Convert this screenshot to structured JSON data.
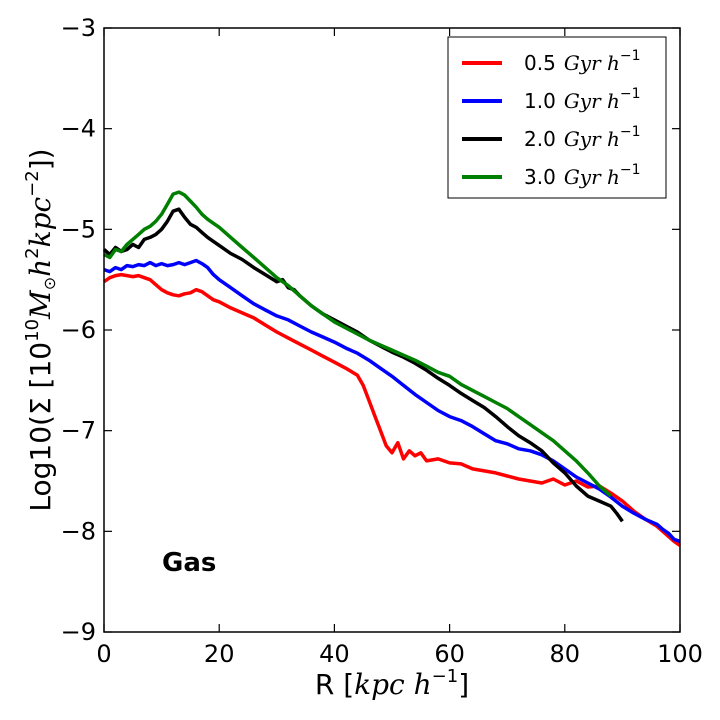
{
  "chart_data": {
    "type": "line",
    "title": "",
    "xlabel": "R [kpc h^-1]",
    "xlabel_parts": {
      "lead": "R [",
      "math": "kpc h",
      "sup": "−1",
      "tail": "]"
    },
    "ylabel": "Log10(Σ [10^10 M⊙ h^2 kpc^-2])",
    "ylabel_parts": {
      "lead": "Log10(Σ [10",
      "sup1": "10",
      "m": "M",
      "sun": "⊙",
      "h": "h",
      "sup2": "2",
      "kpc": "kpc",
      "sup3": "−2",
      "tail": "])"
    },
    "xlim": [
      0,
      100
    ],
    "ylim": [
      -9,
      -3
    ],
    "xticks": [
      0,
      20,
      40,
      60,
      80,
      100
    ],
    "xtick_labels": [
      "0",
      "20",
      "40",
      "60",
      "80",
      "100"
    ],
    "yticks": [
      -9,
      -8,
      -7,
      -6,
      -5,
      -4,
      -3
    ],
    "ytick_labels": [
      "−9",
      "−8",
      "−7",
      "−6",
      "−5",
      "−4",
      "−3"
    ],
    "grid": false,
    "legend_position": "top-right",
    "annotation": "Gas",
    "series": [
      {
        "name": "0.5 Gyr h^-1",
        "label_value": "0.5",
        "label_unit": "Gyr h",
        "label_sup": "−1",
        "color": "#ff0000",
        "x": [
          0,
          1,
          2,
          3,
          4,
          5,
          6,
          7,
          8,
          9,
          10,
          11,
          12,
          13,
          14,
          15,
          16,
          17,
          18,
          19,
          20,
          22,
          24,
          26,
          28,
          30,
          32,
          34,
          36,
          38,
          40,
          42,
          44,
          45,
          46,
          47,
          48,
          49,
          50,
          51,
          52,
          53,
          54,
          55,
          56,
          58,
          60,
          62,
          64,
          66,
          68,
          70,
          72,
          74,
          76,
          78,
          80,
          82,
          84,
          86,
          88,
          90,
          92,
          94,
          96,
          97,
          98,
          99,
          100
        ],
        "y": [
          -5.52,
          -5.48,
          -5.46,
          -5.45,
          -5.46,
          -5.47,
          -5.46,
          -5.48,
          -5.5,
          -5.55,
          -5.6,
          -5.63,
          -5.65,
          -5.66,
          -5.64,
          -5.63,
          -5.6,
          -5.62,
          -5.66,
          -5.7,
          -5.72,
          -5.78,
          -5.83,
          -5.88,
          -5.95,
          -6.02,
          -6.08,
          -6.14,
          -6.2,
          -6.26,
          -6.32,
          -6.38,
          -6.45,
          -6.55,
          -6.7,
          -6.85,
          -7.0,
          -7.15,
          -7.22,
          -7.12,
          -7.28,
          -7.2,
          -7.25,
          -7.22,
          -7.3,
          -7.28,
          -7.32,
          -7.33,
          -7.38,
          -7.4,
          -7.42,
          -7.45,
          -7.48,
          -7.5,
          -7.52,
          -7.48,
          -7.54,
          -7.5,
          -7.56,
          -7.55,
          -7.62,
          -7.7,
          -7.8,
          -7.88,
          -7.95,
          -8.0,
          -8.05,
          -8.1,
          -8.14
        ]
      },
      {
        "name": "1.0 Gyr h^-1",
        "label_value": "1.0",
        "label_unit": "Gyr h",
        "label_sup": "−1",
        "color": "#0000ff",
        "x": [
          0,
          1,
          2,
          3,
          4,
          5,
          6,
          7,
          8,
          9,
          10,
          11,
          12,
          13,
          14,
          15,
          16,
          17,
          18,
          19,
          20,
          22,
          24,
          26,
          28,
          30,
          32,
          34,
          36,
          38,
          40,
          42,
          44,
          46,
          48,
          50,
          52,
          54,
          56,
          58,
          60,
          62,
          64,
          66,
          68,
          70,
          72,
          74,
          76,
          78,
          80,
          82,
          84,
          86,
          88,
          90,
          92,
          94,
          96,
          97,
          98,
          99,
          100
        ],
        "y": [
          -5.4,
          -5.42,
          -5.38,
          -5.4,
          -5.36,
          -5.37,
          -5.35,
          -5.36,
          -5.33,
          -5.36,
          -5.34,
          -5.36,
          -5.35,
          -5.33,
          -5.35,
          -5.33,
          -5.31,
          -5.34,
          -5.38,
          -5.45,
          -5.5,
          -5.58,
          -5.66,
          -5.74,
          -5.8,
          -5.86,
          -5.9,
          -5.96,
          -6.02,
          -6.07,
          -6.12,
          -6.18,
          -6.23,
          -6.3,
          -6.38,
          -6.46,
          -6.55,
          -6.64,
          -6.72,
          -6.8,
          -6.86,
          -6.9,
          -6.96,
          -7.03,
          -7.1,
          -7.13,
          -7.18,
          -7.2,
          -7.24,
          -7.3,
          -7.38,
          -7.46,
          -7.52,
          -7.58,
          -7.66,
          -7.75,
          -7.82,
          -7.88,
          -7.93,
          -7.98,
          -8.02,
          -8.08,
          -8.1
        ]
      },
      {
        "name": "2.0 Gyr h^-1",
        "label_value": "2.0",
        "label_unit": "Gyr h",
        "label_sup": "−1",
        "color": "#000000",
        "x": [
          0,
          1,
          2,
          3,
          4,
          5,
          6,
          7,
          8,
          9,
          10,
          11,
          12,
          13,
          14,
          15,
          16,
          17,
          18,
          19,
          20,
          22,
          24,
          26,
          28,
          30,
          31,
          32,
          33,
          34,
          36,
          38,
          40,
          42,
          44,
          46,
          48,
          50,
          52,
          54,
          56,
          58,
          60,
          62,
          64,
          66,
          68,
          70,
          72,
          74,
          76,
          78,
          80,
          82,
          84,
          86,
          88,
          89,
          90
        ],
        "y": [
          -5.2,
          -5.25,
          -5.18,
          -5.22,
          -5.2,
          -5.15,
          -5.18,
          -5.1,
          -5.08,
          -5.05,
          -5.0,
          -4.92,
          -4.82,
          -4.8,
          -4.88,
          -4.95,
          -4.98,
          -5.03,
          -5.08,
          -5.12,
          -5.16,
          -5.24,
          -5.3,
          -5.38,
          -5.45,
          -5.52,
          -5.5,
          -5.58,
          -5.6,
          -5.66,
          -5.76,
          -5.84,
          -5.9,
          -5.96,
          -6.02,
          -6.1,
          -6.16,
          -6.22,
          -6.27,
          -6.33,
          -6.4,
          -6.48,
          -6.55,
          -6.63,
          -6.7,
          -6.77,
          -6.86,
          -6.96,
          -7.05,
          -7.12,
          -7.2,
          -7.32,
          -7.42,
          -7.55,
          -7.65,
          -7.7,
          -7.75,
          -7.82,
          -7.9
        ]
      },
      {
        "name": "3.0 Gyr h^-1",
        "label_value": "3.0",
        "label_unit": "Gyr h",
        "label_sup": "−1",
        "color": "#008000",
        "x": [
          0,
          1,
          2,
          3,
          4,
          5,
          6,
          7,
          8,
          9,
          10,
          11,
          12,
          13,
          14,
          15,
          16,
          17,
          18,
          19,
          20,
          22,
          24,
          26,
          28,
          30,
          32,
          34,
          36,
          38,
          40,
          42,
          44,
          46,
          48,
          50,
          52,
          54,
          56,
          58,
          60,
          62,
          64,
          66,
          68,
          70,
          72,
          74,
          76,
          78,
          80,
          82,
          84,
          86,
          88
        ],
        "y": [
          -5.25,
          -5.28,
          -5.2,
          -5.22,
          -5.15,
          -5.1,
          -5.05,
          -5.0,
          -4.97,
          -4.92,
          -4.85,
          -4.75,
          -4.65,
          -4.63,
          -4.66,
          -4.72,
          -4.78,
          -4.85,
          -4.9,
          -4.94,
          -4.98,
          -5.08,
          -5.18,
          -5.28,
          -5.38,
          -5.48,
          -5.56,
          -5.66,
          -5.76,
          -5.84,
          -5.92,
          -5.98,
          -6.04,
          -6.1,
          -6.15,
          -6.2,
          -6.25,
          -6.3,
          -6.36,
          -6.42,
          -6.46,
          -6.54,
          -6.6,
          -6.66,
          -6.72,
          -6.78,
          -6.86,
          -6.94,
          -7.02,
          -7.1,
          -7.2,
          -7.3,
          -7.42,
          -7.55,
          -7.65
        ]
      }
    ]
  }
}
